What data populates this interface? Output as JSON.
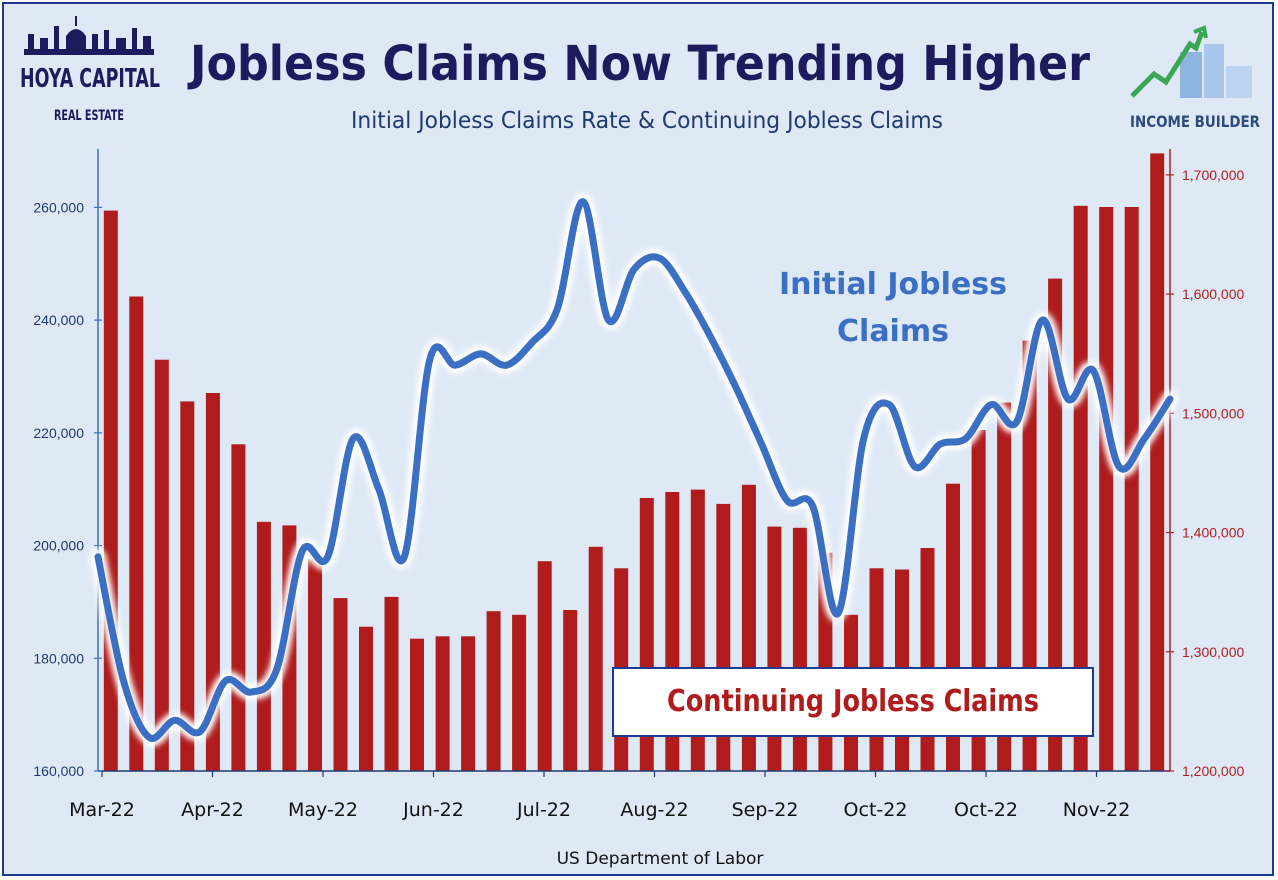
{
  "header": {
    "title": "Jobless Claims Now Trending Higher",
    "subtitle": "Initial Jobless Claims Rate & Continuing Jobless Claims"
  },
  "logos": {
    "left_line1": "HOYA CAPITAL",
    "left_line2": "REAL ESTATE",
    "right": "INCOME BUILDER"
  },
  "annotations": {
    "initial_line1": "Initial Jobless",
    "initial_line2": "Claims",
    "continuing": "Continuing Jobless Claims"
  },
  "source": "US Department of Labor",
  "colors": {
    "background": "#dfe9f6",
    "line": "#3b6fc4",
    "bars": "#b01c1c"
  },
  "chart_data": {
    "type": "bar",
    "title": "Jobless Claims Now Trending Higher",
    "subtitle": "Initial Jobless Claims Rate & Continuing Jobless Claims",
    "x_tick_labels": [
      "Mar-22",
      "Apr-22",
      "May-22",
      "Jun-22",
      "Jul-22",
      "Aug-22",
      "Sep-22",
      "Oct-22",
      "Oct-22",
      "Nov-22"
    ],
    "y_left": {
      "range": [
        160000,
        270000
      ],
      "ticks": [
        160000,
        180000,
        200000,
        220000,
        240000,
        260000
      ],
      "tick_labels": [
        "160,000",
        "180,000",
        "200,000",
        "220,000",
        "240,000",
        "260,000"
      ]
    },
    "y_right": {
      "range": [
        1200000,
        1720000
      ],
      "ticks": [
        1200000,
        1300000,
        1400000,
        1500000,
        1600000,
        1700000
      ],
      "tick_labels": [
        "1,200,000",
        "1,300,000",
        "1,400,000",
        "1,500,000",
        "1,600,000",
        "1,700,000"
      ]
    },
    "grid": false,
    "series": [
      {
        "name": "Continuing Jobless Claims",
        "type": "bar",
        "axis": "right",
        "values": [
          1670000,
          1598000,
          1545000,
          1510000,
          1517000,
          1474000,
          1409000,
          1406000,
          1378000,
          1345000,
          1321000,
          1346000,
          1311000,
          1313000,
          1313000,
          1334000,
          1331000,
          1376000,
          1335000,
          1388000,
          1370000,
          1429000,
          1434000,
          1436000,
          1424000,
          1440000,
          1405000,
          1404000,
          1383000,
          1331000,
          1370000,
          1369000,
          1387000,
          1441000,
          1486000,
          1509000,
          1561000,
          1613000,
          1674000,
          1673000,
          1673000,
          1718000
        ]
      },
      {
        "name": "Initial Jobless Claims",
        "type": "line",
        "axis": "left",
        "values": [
          198000,
          176000,
          166000,
          169000,
          167000,
          176000,
          174000,
          178000,
          199000,
          198000,
          219000,
          210000,
          198000,
          233000,
          232000,
          234000,
          232000,
          236000,
          242000,
          261000,
          240000,
          249000,
          251000,
          245000,
          237000,
          228000,
          218000,
          208000,
          207000,
          188000,
          219000,
          225000,
          214000,
          218000,
          219000,
          225000,
          222000,
          240000,
          226000,
          231000,
          214000,
          219000,
          226000
        ]
      }
    ]
  }
}
